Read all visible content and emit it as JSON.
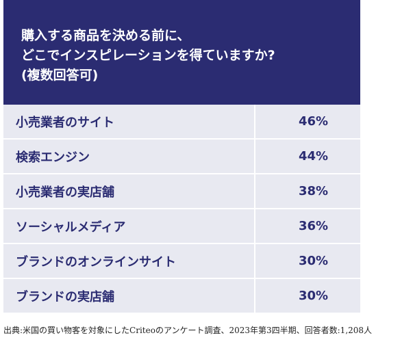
{
  "chart_data": {
    "type": "table",
    "title_lines": [
      "購入する商品を決める前に、",
      "どこでインスピレーションを得ていますか?",
      "(複数回答可)"
    ],
    "categories": [
      "小売業者のサイト",
      "検索エンジン",
      "小売業者の実店舗",
      "ソーシャルメディア",
      "ブランドのオンラインサイト",
      "ブランドの実店舗"
    ],
    "values": [
      46,
      44,
      38,
      36,
      30,
      30
    ],
    "value_labels": [
      "46%",
      "44%",
      "38%",
      "36%",
      "30%",
      "30%"
    ],
    "unit": "%"
  },
  "source_note": "出典:米国の買い物客を対象にしたCriteoのアンケート調査、2023年第3四半期、回答者数:1,208人",
  "colors": {
    "header_bg": "#2b2c72",
    "row_bg": "#e8e9f1",
    "text": "#2b2c72"
  }
}
